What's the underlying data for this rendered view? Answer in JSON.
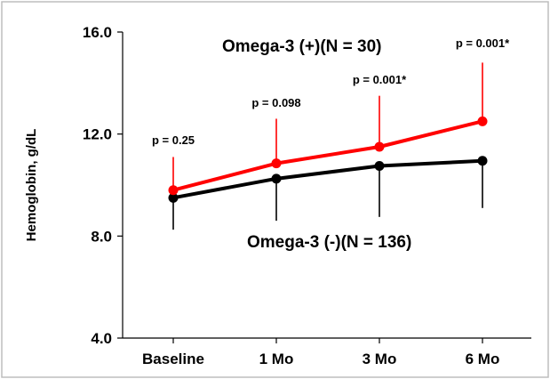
{
  "chart_data": {
    "type": "line",
    "categories": [
      "Baseline",
      "1 Mo",
      "3 Mo",
      "6 Mo"
    ],
    "ylabel": "Hemoglobin, g/dL",
    "ylim": [
      4.0,
      16.0
    ],
    "yticks": [
      "4.0",
      "8.0",
      "12.0",
      "16.0"
    ],
    "grid": false,
    "series": [
      {
        "name": "Omega-3 (+)(N = 30)",
        "color": "#ff0000",
        "values": [
          9.8,
          10.85,
          11.5,
          12.5
        ],
        "error_upper": [
          11.1,
          12.6,
          13.5,
          14.8
        ]
      },
      {
        "name": "Omega-3 (-)(N = 136)",
        "color": "#000000",
        "values": [
          9.5,
          10.25,
          10.75,
          10.95
        ],
        "error_lower": [
          8.25,
          8.6,
          8.75,
          9.1
        ]
      }
    ],
    "p_values": [
      "p = 0.25",
      "p = 0.098",
      "p = 0.001*",
      "p = 0.001*"
    ]
  }
}
